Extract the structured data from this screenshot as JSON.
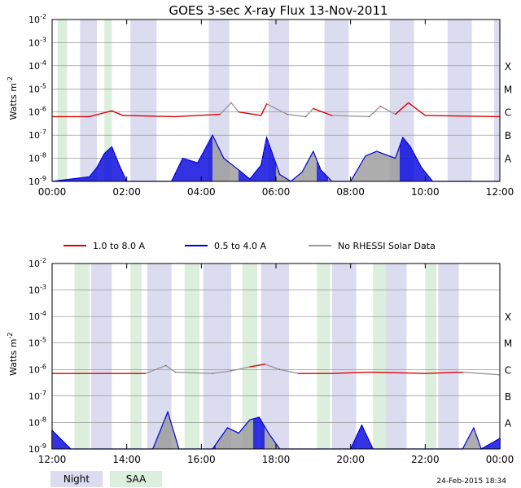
{
  "chart_data": {
    "type": "line",
    "title": "GOES 3-sec X-ray Flux   13-Nov-2011",
    "ylabel": "Watts m",
    "ylabel_sup": "-2",
    "y_scale": "log",
    "ylim": [
      1e-09,
      0.01
    ],
    "y_ticks": [
      {
        "base": "10",
        "exp": "-2",
        "value": -2
      },
      {
        "base": "10",
        "exp": "-3",
        "value": -3
      },
      {
        "base": "10",
        "exp": "-4",
        "value": -4
      },
      {
        "base": "10",
        "exp": "-5",
        "value": -5
      },
      {
        "base": "10",
        "exp": "-6",
        "value": -6
      },
      {
        "base": "10",
        "exp": "-7",
        "value": -7
      },
      {
        "base": "10",
        "exp": "-8",
        "value": -8
      },
      {
        "base": "10",
        "exp": "-9",
        "value": -9
      }
    ],
    "flare_classes": [
      {
        "label": "X",
        "value": -4
      },
      {
        "label": "M",
        "value": -5
      },
      {
        "label": "C",
        "value": -6
      },
      {
        "label": "B",
        "value": -7
      },
      {
        "label": "A",
        "value": -8
      }
    ],
    "grid": true,
    "legend_position": "between-panels",
    "series_legend": [
      {
        "name": "1.0 to 8.0 A",
        "color": "#dd0000"
      },
      {
        "name": "0.5 to 4.0 A",
        "color": "#0000dd"
      },
      {
        "name": "No RHESSI Solar Data",
        "color": "#999999"
      }
    ],
    "shading_legend": [
      {
        "name": "Night",
        "color": "#dcdcf0"
      },
      {
        "name": "SAA",
        "color": "#dcefdc"
      }
    ],
    "panels": [
      {
        "x_range_hours": [
          0,
          12
        ],
        "x_ticks": [
          "00:00",
          "02:00",
          "04:00",
          "06:00",
          "08:00",
          "10:00",
          "12:00"
        ],
        "night": [
          [
            0.75,
            1.2
          ],
          [
            2.1,
            2.8
          ],
          [
            4.2,
            4.75
          ],
          [
            5.8,
            6.35
          ],
          [
            7.3,
            7.95
          ],
          [
            9.05,
            9.7
          ],
          [
            10.6,
            11.25
          ],
          [
            11.85,
            12.0
          ]
        ],
        "saa": [
          [
            0.15,
            0.4
          ],
          [
            1.4,
            1.6
          ]
        ],
        "long": [
          [
            0,
            -6.2
          ],
          [
            1.0,
            -6.2
          ],
          [
            1.6,
            -5.95
          ],
          [
            1.9,
            -6.15
          ],
          [
            3.3,
            -6.2
          ],
          [
            4.5,
            -6.1
          ],
          [
            4.8,
            -5.6
          ],
          [
            5.0,
            -6.0
          ],
          [
            5.6,
            -6.15
          ],
          [
            5.75,
            -5.65
          ],
          [
            6.3,
            -6.1
          ],
          [
            6.8,
            -6.2
          ],
          [
            7.0,
            -5.85
          ],
          [
            7.5,
            -6.15
          ],
          [
            8.5,
            -6.2
          ],
          [
            8.8,
            -5.75
          ],
          [
            9.2,
            -6.1
          ],
          [
            9.55,
            -5.6
          ],
          [
            10.0,
            -6.15
          ],
          [
            12.0,
            -6.2
          ]
        ],
        "long_gray_segments": [
          [
            4.3,
            5.0
          ],
          [
            6.0,
            7.1
          ],
          [
            7.4,
            9.3
          ]
        ],
        "short": [
          [
            0,
            -9
          ],
          [
            1.0,
            -8.8
          ],
          [
            1.2,
            -8.4
          ],
          [
            1.4,
            -7.8
          ],
          [
            1.6,
            -7.5
          ],
          [
            1.8,
            -8.3
          ],
          [
            2.0,
            -9
          ],
          [
            3.2,
            -9
          ],
          [
            3.5,
            -8.0
          ],
          [
            3.9,
            -8.2
          ],
          [
            4.3,
            -7.0
          ],
          [
            4.6,
            -8.0
          ],
          [
            5.0,
            -8.5
          ],
          [
            5.3,
            -8.9
          ],
          [
            5.6,
            -8.3
          ],
          [
            5.75,
            -7.1
          ],
          [
            6.1,
            -8.7
          ],
          [
            6.4,
            -9
          ],
          [
            6.7,
            -8.6
          ],
          [
            7.0,
            -7.7
          ],
          [
            7.2,
            -8.5
          ],
          [
            7.5,
            -9
          ],
          [
            8.0,
            -9
          ],
          [
            8.4,
            -7.9
          ],
          [
            8.7,
            -7.7
          ],
          [
            9.2,
            -8.0
          ],
          [
            9.4,
            -7.1
          ],
          [
            9.6,
            -7.5
          ],
          [
            9.9,
            -8.4
          ],
          [
            10.2,
            -9
          ],
          [
            12.0,
            -9
          ]
        ],
        "short_gray_segments": [
          [
            4.3,
            5.0
          ],
          [
            6.0,
            7.1
          ],
          [
            7.4,
            9.3
          ]
        ]
      },
      {
        "x_range_hours": [
          12,
          24
        ],
        "x_ticks": [
          "12:00",
          "14:00",
          "16:00",
          "18:00",
          "20:00",
          "22:00",
          "00:00"
        ],
        "night": [
          [
            13.05,
            13.6
          ],
          [
            14.55,
            15.2
          ],
          [
            16.05,
            16.8
          ],
          [
            17.6,
            18.35
          ],
          [
            19.5,
            20.15
          ],
          [
            20.9,
            21.5
          ],
          [
            22.35,
            22.9
          ]
        ],
        "saa": [
          [
            12.6,
            13.0
          ],
          [
            14.1,
            14.4
          ],
          [
            15.55,
            15.95
          ],
          [
            17.1,
            17.5
          ],
          [
            19.1,
            19.45
          ],
          [
            20.6,
            20.95
          ],
          [
            22.0,
            22.3
          ]
        ],
        "long": [
          [
            12.0,
            -6.15
          ],
          [
            14.5,
            -6.15
          ],
          [
            15.05,
            -5.85
          ],
          [
            15.3,
            -6.1
          ],
          [
            16.3,
            -6.15
          ],
          [
            16.8,
            -6.05
          ],
          [
            17.3,
            -5.9
          ],
          [
            17.7,
            -5.8
          ],
          [
            18.1,
            -6.0
          ],
          [
            18.6,
            -6.15
          ],
          [
            19.5,
            -6.15
          ],
          [
            20.5,
            -6.1
          ],
          [
            22.0,
            -6.15
          ],
          [
            23.0,
            -6.1
          ],
          [
            24.0,
            -6.2
          ]
        ],
        "long_gray_segments": [
          [
            14.6,
            15.8
          ],
          [
            16.4,
            17.4
          ],
          [
            17.7,
            18.5
          ],
          [
            23.0,
            23.5
          ]
        ],
        "short": [
          [
            12.0,
            -8.3
          ],
          [
            12.5,
            -9
          ],
          [
            13.0,
            -9
          ],
          [
            14.7,
            -9
          ],
          [
            15.1,
            -7.6
          ],
          [
            15.4,
            -9
          ],
          [
            16.3,
            -9
          ],
          [
            16.7,
            -8.2
          ],
          [
            17.0,
            -8.4
          ],
          [
            17.3,
            -7.9
          ],
          [
            17.55,
            -7.8
          ],
          [
            17.8,
            -8.4
          ],
          [
            18.1,
            -9
          ],
          [
            20.0,
            -9
          ],
          [
            20.3,
            -8.1
          ],
          [
            20.6,
            -9
          ],
          [
            23.0,
            -9
          ],
          [
            23.3,
            -8.2
          ],
          [
            23.5,
            -9
          ],
          [
            24.0,
            -8.6
          ]
        ],
        "short_gray_segments": [
          [
            14.6,
            15.8
          ],
          [
            16.4,
            17.4
          ],
          [
            17.7,
            18.5
          ],
          [
            23.0,
            23.5
          ]
        ]
      }
    ],
    "timestamp": "24-Feb-2015 18:34"
  }
}
